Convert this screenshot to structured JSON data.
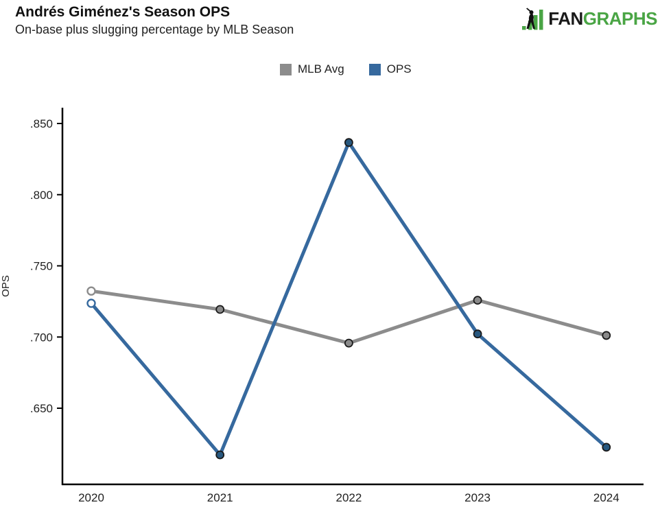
{
  "header": {
    "title": "Andrés Giménez's Season OPS",
    "subtitle": "On-base plus slugging percentage by MLB Season"
  },
  "logo": {
    "text_black": "FAN",
    "text_green": "GRAPHS",
    "green": "#4AA545"
  },
  "legend": {
    "items": [
      {
        "label": "MLB Avg",
        "color": "#8C8C8C"
      },
      {
        "label": "OPS",
        "color": "#36699E"
      }
    ]
  },
  "chart_data": {
    "type": "line",
    "title": "Andrés Giménez's Season OPS",
    "subtitle": "On-base plus slugging percentage by MLB Season",
    "categories": [
      "2020",
      "2021",
      "2022",
      "2023",
      "2024"
    ],
    "series": [
      {
        "name": "MLB Avg",
        "color": "#8C8C8C",
        "marker_fill": "#8A8A8A",
        "values": [
          0.74,
          0.728,
          0.706,
          0.734,
          0.711
        ]
      },
      {
        "name": "OPS",
        "color": "#36699E",
        "marker_fill": "#28587F",
        "values": [
          0.732,
          0.633,
          0.837,
          0.712,
          0.638
        ]
      }
    ],
    "xlabel": "",
    "ylabel": "OPS",
    "ytick_labels": [
      ".850",
      ".800",
      ".750",
      ".700",
      ".650"
    ],
    "ytick_values": [
      0.85,
      0.8,
      0.75,
      0.7,
      0.65
    ],
    "ylim": [
      0.597,
      0.862
    ],
    "grid": false,
    "legend_position": "top-center",
    "open_markers_on_first_category": true
  }
}
